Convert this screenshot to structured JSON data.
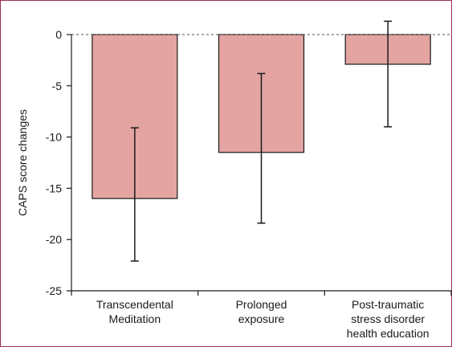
{
  "chart_data": {
    "type": "bar",
    "ylabel": "CAPS score changes",
    "ylim": [
      -25,
      0
    ],
    "yticks": [
      0,
      -5,
      -10,
      -15,
      -20,
      -25
    ],
    "ytick_labels": [
      "0",
      "-5",
      "-10",
      "-15",
      "-20",
      "-25"
    ],
    "categories": [
      [
        "Transcendental",
        "Meditation"
      ],
      [
        "Prolonged",
        "exposure"
      ],
      [
        "Post-traumatic",
        "stress disorder",
        "health education"
      ]
    ],
    "values": [
      -16,
      -11.5,
      -2.9
    ],
    "error_low": [
      -22.1,
      -18.4,
      -9
    ],
    "error_high": [
      -9.1,
      -3.8,
      1.3
    ],
    "zero_line": "dashed",
    "grid": false,
    "colors": {
      "bar_fill": "#e3a4a2",
      "bar_stroke": "#1a1a1a",
      "frame": "#9b2f55",
      "axis": "#1a1a1a"
    }
  }
}
